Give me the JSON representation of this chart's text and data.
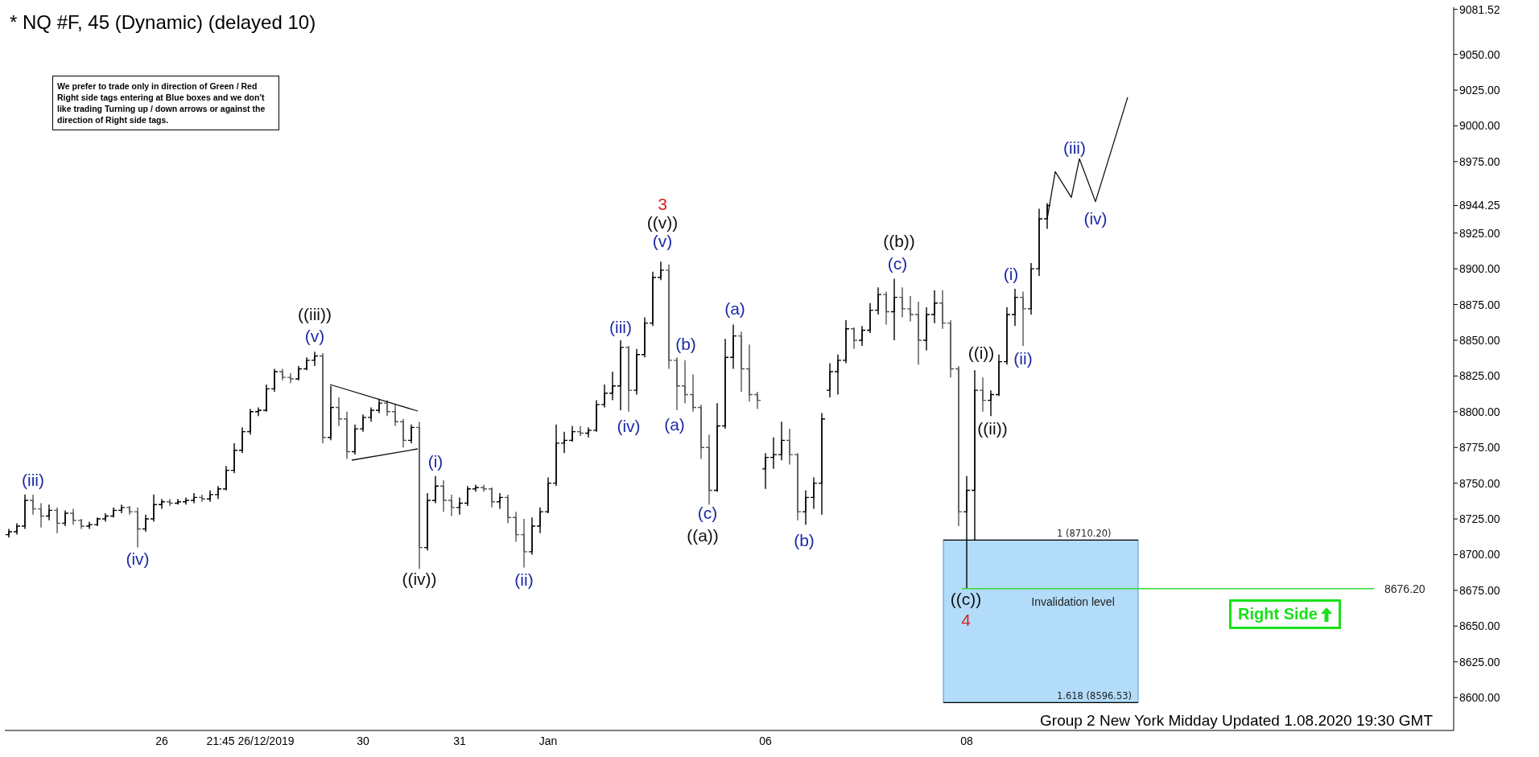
{
  "chart_data": {
    "type": "candlestick",
    "title": "* NQ #F, 45 (Dynamic) (delayed 10)",
    "categories": [
      null,
      null,
      null,
      null,
      null,
      null,
      null,
      null,
      null,
      null,
      null,
      null,
      null,
      null,
      null,
      null,
      null,
      null,
      null,
      "26",
      null,
      null,
      null,
      null,
      null,
      null,
      null,
      null,
      null,
      null,
      "21:45 26/12/2019",
      null,
      null,
      null,
      null,
      null,
      null,
      null,
      null,
      null,
      null,
      null,
      null,
      null,
      "30",
      null,
      null,
      null,
      null,
      null,
      null,
      null,
      null,
      null,
      null,
      null,
      "31",
      null,
      null,
      null,
      null,
      null,
      null,
      null,
      null,
      null,
      null,
      "Jan",
      null,
      null,
      null,
      null,
      null,
      null,
      null,
      null,
      null,
      null,
      null,
      null,
      null,
      null,
      null,
      null,
      null,
      null,
      null,
      null,
      null,
      null,
      null,
      null,
      null,
      null,
      "06",
      null,
      null,
      null,
      null,
      null,
      null,
      null,
      null,
      null,
      null,
      null,
      null,
      null,
      null,
      null,
      null,
      null,
      null,
      null,
      null,
      null,
      null,
      null,
      null,
      "08",
      null,
      null,
      null,
      null,
      null,
      null,
      null,
      null,
      null,
      null,
      null,
      null,
      null,
      null,
      null,
      null,
      null,
      null,
      null,
      null,
      null,
      null,
      null,
      null,
      null,
      null,
      null,
      null,
      null,
      null,
      null,
      null,
      null,
      null,
      null,
      null,
      null,
      null,
      null,
      null,
      null,
      null,
      null,
      null,
      null,
      null,
      null,
      null,
      null,
      null,
      null,
      null,
      null,
      null,
      null,
      null,
      null,
      null,
      null,
      null
    ],
    "ohlc": [
      [
        8714,
        8718,
        8712,
        8716
      ],
      [
        8716,
        8722,
        8714,
        8720
      ],
      [
        8720,
        8742,
        8718,
        8738
      ],
      [
        8738,
        8742,
        8728,
        8732
      ],
      [
        8732,
        8736,
        8719,
        8727
      ],
      [
        8727,
        8735,
        8724,
        8731
      ],
      [
        8731,
        8733,
        8715,
        8722
      ],
      [
        8722,
        8731,
        8720,
        8729
      ],
      [
        8729,
        8732,
        8721,
        8724
      ],
      [
        8724,
        8725,
        8718,
        8720
      ],
      [
        8720,
        8723,
        8718,
        8721
      ],
      [
        8721,
        8726,
        8720,
        8725
      ],
      [
        8725,
        8729,
        8723,
        8727
      ],
      [
        8727,
        8733,
        8726,
        8731
      ],
      [
        8731,
        8735,
        8729,
        8733
      ],
      [
        8733,
        8734,
        8728,
        8730
      ],
      [
        8730,
        8733,
        8705,
        8718
      ],
      [
        8718,
        8728,
        8716,
        8725
      ],
      [
        8725,
        8742,
        8723,
        8735
      ],
      [
        8735,
        8739,
        8732,
        8737
      ],
      [
        8737,
        8739,
        8734,
        8736
      ],
      [
        8736,
        8739,
        8735,
        8737
      ],
      [
        8737,
        8740,
        8735,
        8738
      ],
      [
        8738,
        8743,
        8736,
        8740
      ],
      [
        8740,
        8742,
        8737,
        8739
      ],
      [
        8739,
        8745,
        8737,
        8742
      ],
      [
        8742,
        8748,
        8739,
        8746
      ],
      [
        8746,
        8762,
        8745,
        8759
      ],
      [
        8759,
        8778,
        8757,
        8773
      ],
      [
        8773,
        8789,
        8771,
        8786
      ],
      [
        8786,
        8802,
        8784,
        8800
      ],
      [
        8800,
        8803,
        8797,
        8801
      ],
      [
        8801,
        8819,
        8800,
        8816
      ],
      [
        8816,
        8830,
        8814,
        8828
      ],
      [
        8828,
        8830,
        8822,
        8824
      ],
      [
        8824,
        8827,
        8820,
        8823
      ],
      [
        8823,
        8832,
        8822,
        8830
      ],
      [
        8830,
        8838,
        8829,
        8836
      ],
      [
        8836,
        8842,
        8832,
        8839
      ],
      [
        8839,
        8841,
        8778,
        8782
      ],
      [
        8782,
        8818,
        8780,
        8803
      ],
      [
        8803,
        8810,
        8790,
        8795
      ],
      [
        8795,
        8800,
        8767,
        8772
      ],
      [
        8772,
        8791,
        8770,
        8788
      ],
      [
        8788,
        8798,
        8786,
        8796
      ],
      [
        8796,
        8803,
        8793,
        8801
      ],
      [
        8801,
        8809,
        8799,
        8806
      ],
      [
        8806,
        8808,
        8797,
        8800
      ],
      [
        8800,
        8805,
        8790,
        8793
      ],
      [
        8793,
        8795,
        8775,
        8780
      ],
      [
        8780,
        8791,
        8778,
        8789
      ],
      [
        8789,
        8793,
        8690,
        8705
      ],
      [
        8705,
        8743,
        8703,
        8738
      ],
      [
        8738,
        8755,
        8736,
        8748
      ],
      [
        8748,
        8752,
        8730,
        8738
      ],
      [
        8738,
        8742,
        8727,
        8733
      ],
      [
        8733,
        8740,
        8728,
        8736
      ],
      [
        8736,
        8748,
        8734,
        8746
      ],
      [
        8746,
        8749,
        8744,
        8747
      ],
      [
        8747,
        8749,
        8744,
        8746
      ],
      [
        8746,
        8747,
        8733,
        8737
      ],
      [
        8737,
        8743,
        8732,
        8740
      ],
      [
        8740,
        8742,
        8722,
        8726
      ],
      [
        8726,
        8730,
        8709,
        8714
      ],
      [
        8714,
        8725,
        8691,
        8702
      ],
      [
        8702,
        8726,
        8700,
        8720
      ],
      [
        8720,
        8733,
        8715,
        8730
      ],
      [
        8730,
        8754,
        8729,
        8750
      ],
      [
        8750,
        8791,
        8748,
        8778
      ],
      [
        8778,
        8786,
        8771,
        8780
      ],
      [
        8780,
        8790,
        8779,
        8786
      ],
      [
        8786,
        8790,
        8783,
        8785
      ],
      [
        8785,
        8789,
        8782,
        8787
      ],
      [
        8787,
        8808,
        8786,
        8805
      ],
      [
        8805,
        8819,
        8803,
        8813
      ],
      [
        8813,
        8828,
        8808,
        8818
      ],
      [
        8818,
        8850,
        8801,
        8845
      ],
      [
        8845,
        8846,
        8800,
        8815
      ],
      [
        8815,
        8844,
        8812,
        8840
      ],
      [
        8840,
        8866,
        8838,
        8862
      ],
      [
        8862,
        8898,
        8860,
        8894
      ],
      [
        8894,
        8905,
        8892,
        8899
      ],
      [
        8899,
        8903,
        8830,
        8836
      ],
      [
        8836,
        8838,
        8801,
        8818
      ],
      [
        8818,
        8836,
        8806,
        8812
      ],
      [
        8812,
        8826,
        8800,
        8803
      ],
      [
        8803,
        8805,
        8767,
        8775
      ],
      [
        8775,
        8784,
        8735,
        8745
      ],
      [
        8745,
        8806,
        8744,
        8790
      ],
      [
        8790,
        8851,
        8788,
        8838
      ],
      [
        8838,
        8861,
        8830,
        8853
      ],
      [
        8853,
        8856,
        8814,
        8830
      ],
      [
        8830,
        8847,
        8807,
        8812
      ],
      [
        8812,
        8814,
        8802,
        8808
      ],
      [
        8760,
        8771,
        8746,
        8768
      ],
      [
        8768,
        8782,
        8760,
        8770
      ],
      [
        8770,
        8793,
        8766,
        8780
      ],
      [
        8780,
        8788,
        8763,
        8770
      ],
      [
        8770,
        8771,
        8724,
        8730
      ],
      [
        8730,
        8745,
        8721,
        8740
      ],
      [
        8740,
        8754,
        8732,
        8750
      ],
      [
        8750,
        8799,
        8728,
        8795
      ],
      [
        8815,
        8834,
        8810,
        8828
      ],
      [
        8828,
        8840,
        8812,
        8836
      ],
      [
        8836,
        8864,
        8834,
        8858
      ],
      [
        8858,
        8859,
        8844,
        8850
      ],
      [
        8850,
        8860,
        8846,
        8857
      ],
      [
        8857,
        8876,
        8855,
        8871
      ],
      [
        8871,
        8887,
        8868,
        8882
      ],
      [
        8882,
        8884,
        8861,
        8870
      ],
      [
        8870,
        8893,
        8850,
        8880
      ],
      [
        8880,
        8887,
        8866,
        8872
      ],
      [
        8872,
        8881,
        8863,
        8868
      ],
      [
        8868,
        8877,
        8833,
        8850
      ],
      [
        8850,
        8873,
        8843,
        8868
      ],
      [
        8868,
        8885,
        8862,
        8876
      ],
      [
        8876,
        8885,
        8858,
        8862
      ],
      [
        8862,
        8864,
        8824,
        8830
      ],
      [
        8830,
        8832,
        8720,
        8730
      ],
      [
        8730,
        8755,
        8676,
        8745
      ],
      [
        8745,
        8829,
        8710,
        8815
      ],
      [
        8815,
        8824,
        8800,
        8808
      ],
      [
        8808,
        8815,
        8797,
        8812
      ],
      [
        8812,
        8840,
        8811,
        8835
      ],
      [
        8835,
        8873,
        8833,
        8868
      ],
      [
        8868,
        8886,
        8860,
        8880
      ],
      [
        8880,
        8884,
        8846,
        8872
      ],
      [
        8872,
        8904,
        8868,
        8900
      ],
      [
        8900,
        8942,
        8895,
        8935
      ],
      [
        8935,
        8946,
        8928,
        8944.25
      ],
      null,
      null,
      null,
      null,
      null,
      null,
      null,
      null,
      null,
      null,
      null,
      null,
      null,
      null,
      null,
      null,
      null,
      null,
      null,
      null,
      null,
      null,
      null,
      null,
      null,
      null,
      null,
      null,
      null,
      null,
      null,
      null,
      null,
      null,
      null,
      null,
      null,
      null,
      null,
      null,
      null,
      null,
      null,
      null,
      null,
      null,
      null,
      null,
      null,
      null
    ],
    "colors": [
      "#000000",
      "#000000",
      "#000000",
      "#555555",
      "#555555",
      "#000000",
      "#555555",
      "#000000",
      "#555555",
      "#555555",
      "#000000",
      "#000000",
      "#000000",
      "#000000",
      "#000000",
      "#555555",
      "#555555",
      "#000000",
      "#000000",
      "#000000",
      "#555555",
      "#000000",
      "#000000",
      "#000000",
      "#555555",
      "#000000",
      "#000000",
      "#000000",
      "#000000",
      "#000000",
      "#000000",
      "#000000",
      "#000000",
      "#000000",
      "#555555",
      "#555555",
      "#000000",
      "#000000",
      "#000000",
      "#555555",
      "#000000",
      "#555555",
      "#555555",
      "#000000",
      "#000000",
      "#000000",
      "#000000",
      "#555555",
      "#555555",
      "#555555",
      "#000000",
      "#555555",
      "#000000",
      "#000000",
      "#555555",
      "#555555",
      "#000000",
      "#000000",
      "#000000",
      "#555555",
      "#555555",
      "#000000",
      "#555555",
      "#555555",
      "#555555",
      "#000000",
      "#000000",
      "#000000",
      "#000000",
      "#000000",
      "#000000",
      "#555555",
      "#000000",
      "#000000",
      "#000000",
      "#000000",
      "#000000",
      "#555555",
      "#000000",
      "#000000",
      "#000000",
      "#000000",
      "#555555",
      "#555555",
      "#555555",
      "#555555",
      "#555555",
      "#555555",
      "#000000",
      "#000000",
      "#000000",
      "#555555",
      "#555555",
      "#555555",
      "#000000",
      "#000000",
      "#000000",
      "#555555",
      "#555555",
      "#000000",
      "#000000",
      "#000000",
      "#000000",
      "#000000",
      "#000000",
      "#555555",
      "#000000",
      "#000000",
      "#000000",
      "#555555",
      "#000000",
      "#555555",
      "#555555",
      "#555555",
      "#000000",
      "#000000",
      "#555555",
      "#555555",
      "#555555",
      "#000000",
      "#000000",
      "#555555",
      "#000000",
      "#000000",
      "#000000",
      "#000000",
      "#555555",
      "#000000",
      "#000000",
      "#000000",
      null,
      null,
      null,
      null,
      null,
      null,
      null,
      null,
      null,
      null,
      null,
      null,
      null,
      null,
      null,
      null,
      null,
      null,
      null,
      null,
      null,
      null,
      null,
      null,
      null,
      null,
      null,
      null,
      null,
      null,
      null,
      null,
      null,
      null,
      null,
      null,
      null,
      null,
      null,
      null,
      null,
      null,
      null,
      null,
      null,
      null,
      null,
      null,
      null,
      null
    ],
    "series": [
      {
        "type": "line",
        "color": "#111111",
        "values": [
          null,
          null,
          null,
          null,
          null,
          null,
          null,
          null,
          null,
          null,
          null,
          null,
          null,
          null,
          null,
          null,
          null,
          null,
          null,
          null,
          null,
          null,
          null,
          null,
          null,
          null,
          null,
          null,
          null,
          null,
          null,
          null,
          null,
          null,
          null,
          null,
          null,
          null,
          null,
          null,
          null,
          null,
          null,
          null,
          null,
          null,
          null,
          null,
          null,
          null,
          null,
          null,
          null,
          null,
          null,
          null,
          null,
          null,
          null,
          null,
          null,
          null,
          null,
          null,
          null,
          null,
          null,
          null,
          null,
          null,
          null,
          null,
          null,
          null,
          null,
          null,
          null,
          null,
          null,
          null,
          null,
          null,
          null,
          null,
          null,
          null,
          null,
          null,
          null,
          null,
          null,
          null,
          null,
          null,
          null,
          null,
          null,
          null,
          null,
          null,
          null,
          null,
          null,
          null,
          null,
          null,
          null,
          null,
          null,
          null,
          null,
          null,
          null,
          null,
          null,
          null,
          null,
          null,
          null,
          null,
          null,
          null,
          null,
          null,
          null,
          null,
          null,
          null,
          null,
          8935,
          8968,
          null,
          8950,
          8977,
          null,
          8947,
          null,
          null,
          null,
          9020,
          null,
          null,
          null,
          null,
          null,
          null,
          null,
          null,
          null,
          null,
          null,
          null,
          null,
          null,
          null,
          null,
          null,
          null,
          null,
          null,
          null,
          null,
          null,
          null,
          null,
          null,
          null,
          null,
          null,
          null,
          null,
          null,
          null,
          null,
          null,
          null,
          null,
          null,
          null,
          null
        ]
      }
    ],
    "ylim": [
      8577,
      9083
    ],
    "yticks": [
      {
        "value": 8600,
        "label": "8600.00"
      },
      {
        "value": 8625,
        "label": "8625.00"
      },
      {
        "value": 8650,
        "label": "8650.00"
      },
      {
        "value": 8675,
        "label": "8675.00"
      },
      {
        "value": 8700,
        "label": "8700.00"
      },
      {
        "value": 8725,
        "label": "8725.00"
      },
      {
        "value": 8750,
        "label": "8750.00"
      },
      {
        "value": 8775,
        "label": "8775.00"
      },
      {
        "value": 8800,
        "label": "8800.00"
      },
      {
        "value": 8825,
        "label": "8825.00"
      },
      {
        "value": 8850,
        "label": "8850.00"
      },
      {
        "value": 8875,
        "label": "8875.00"
      },
      {
        "value": 8900,
        "label": "8900.00"
      },
      {
        "value": 8925,
        "label": "8925.00"
      },
      {
        "value": 8944.25,
        "label": "8944.25"
      },
      {
        "value": 8975,
        "label": "8975.00"
      },
      {
        "value": 9000,
        "label": "9000.00"
      },
      {
        "value": 9025,
        "label": "9025.00"
      },
      {
        "value": 9050,
        "label": "9050.00"
      },
      {
        "value": 9081.52,
        "label": "9081.52"
      }
    ],
    "ref_lines": [
      {
        "axis": "y",
        "value": 8710.2,
        "label": "1 (8710.20)",
        "color": "#000000"
      },
      {
        "axis": "y",
        "value": 8596.53,
        "label": "1.618 (8596.53)",
        "color": "#000000"
      },
      {
        "axis": "y",
        "value": 8676.2,
        "label": "8676.20",
        "color": "#3ad83a"
      }
    ],
    "bands": [
      {
        "axis": "y",
        "from": 8596.53,
        "to": 8710.2,
        "color": "#b3dcfa"
      }
    ],
    "annotations": [
      "We prefer to trade only in direction of Green / Red Right side tags entering at Blue boxes and we don't like trading Turning up / down arrows or against the direction of Right side tags.",
      "Invalidation level",
      "Right Side",
      "Group 2 New York Midday Updated 1.08.2020 19:30 GMT",
      "(iii)",
      "(iv)",
      "((iii))",
      "(v)",
      "((iv))",
      "(i)",
      "(ii)",
      "(iii)",
      "(iv)",
      "3",
      "((v))",
      "(v)",
      "(a)",
      "(b)",
      "(c)",
      "((a))",
      "(a)",
      "(b)",
      "((b))",
      "(c)",
      "((i))",
      "((ii))",
      "((c))",
      "4",
      "(i)",
      "(ii)",
      "(iii)",
      "(iv)"
    ]
  }
}
